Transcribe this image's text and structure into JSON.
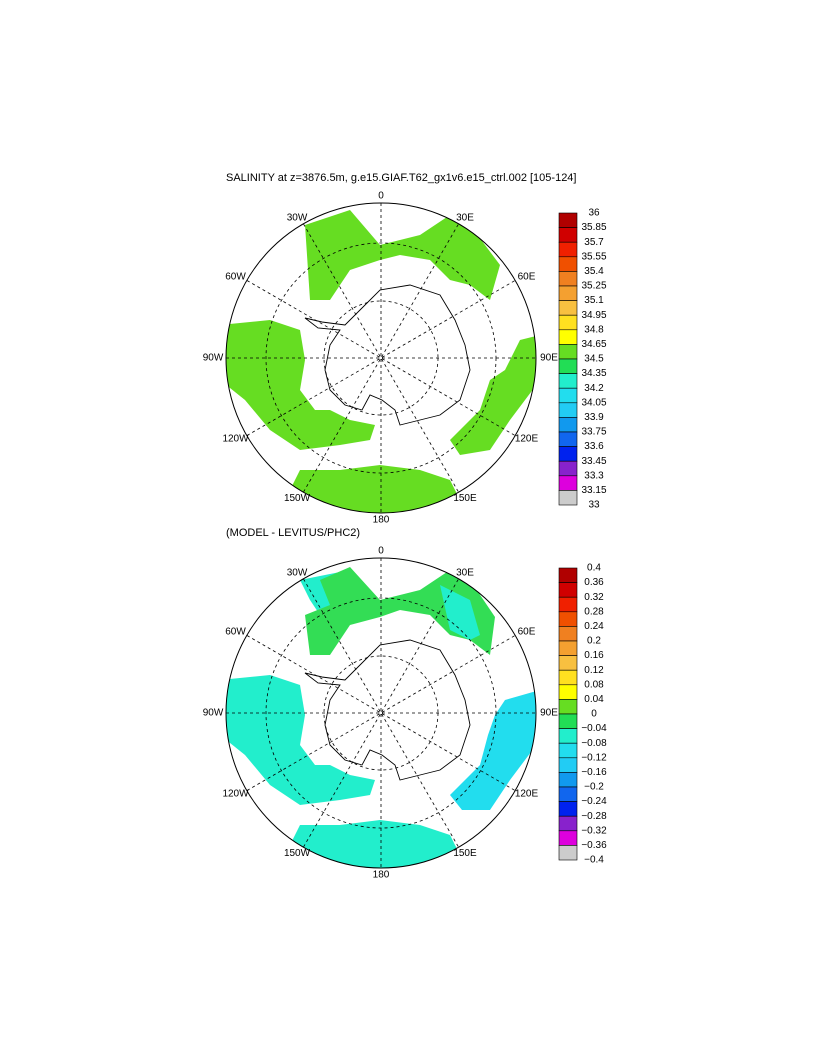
{
  "maps": [
    {
      "title": "SALINITY at z=3876.5m, g.e15.GIAF.T62_gx1v6.e15_ctrl.002 [105-124]",
      "lon_labels": [
        "0",
        "30E",
        "60E",
        "90E",
        "120E",
        "150E",
        "180",
        "150W",
        "120W",
        "90W",
        "60W",
        "30W"
      ],
      "colorbar": {
        "labels": [
          "36",
          "35.85",
          "35.7",
          "35.55",
          "35.4",
          "35.25",
          "35.1",
          "34.95",
          "34.8",
          "34.65",
          "34.5",
          "34.35",
          "34.2",
          "34.05",
          "33.9",
          "33.75",
          "33.6",
          "33.45",
          "33.3",
          "33.15",
          "33"
        ],
        "colors": [
          "#b00000",
          "#d00000",
          "#f02000",
          "#f05000",
          "#f08020",
          "#f4a030",
          "#f8c040",
          "#ffe020",
          "#ffff00",
          "#66dd22",
          "#22dd55",
          "#22eecc",
          "#22ddee",
          "#22ccf4",
          "#1199ee",
          "#1166ee",
          "#0022ee",
          "#8822cc",
          "#dd00dd",
          "#cccccc",
          "#707070"
        ]
      }
    },
    {
      "title": "(MODEL - LEVITUS/PHC2)",
      "lon_labels": [
        "0",
        "30E",
        "60E",
        "90E",
        "120E",
        "150E",
        "180",
        "150W",
        "120W",
        "90W",
        "60W",
        "30W"
      ],
      "colorbar": {
        "labels": [
          "0.4",
          "0.36",
          "0.32",
          "0.28",
          "0.24",
          "0.2",
          "0.16",
          "0.12",
          "0.08",
          "0.04",
          "0",
          "−0.04",
          "−0.08",
          "−0.12",
          "−0.16",
          "−0.2",
          "−0.24",
          "−0.28",
          "−0.32",
          "−0.36",
          "−0.4"
        ],
        "colors": [
          "#b00000",
          "#d00000",
          "#f02000",
          "#f05000",
          "#f08020",
          "#f4a030",
          "#f8c040",
          "#ffe020",
          "#ffff00",
          "#66dd22",
          "#22dd55",
          "#22eecc",
          "#22ddee",
          "#22ccf4",
          "#1199ee",
          "#1166ee",
          "#0022ee",
          "#8822cc",
          "#dd00dd",
          "#cccccc",
          "#707070"
        ]
      }
    }
  ]
}
